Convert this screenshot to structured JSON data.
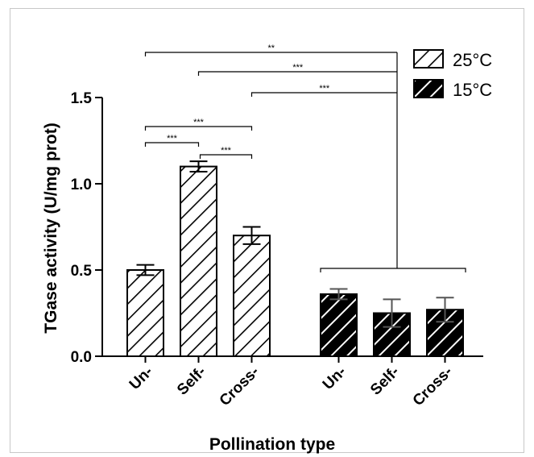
{
  "chart_data": {
    "type": "bar",
    "xlabel": "Pollination type",
    "ylabel": "TGase activity (U/mg prot)",
    "ylim": [
      0,
      1.5
    ],
    "yticks": [
      "0.0",
      "0.5",
      "1.0",
      "1.5"
    ],
    "grid": false,
    "legend_placement": "top-right",
    "series": [
      {
        "name": "25°C",
        "pattern": "hatch-white",
        "categories": [
          "Un-",
          "Self-",
          "Cross-"
        ],
        "values": [
          0.5,
          1.1,
          0.7
        ],
        "errors": [
          0.03,
          0.03,
          0.05
        ]
      },
      {
        "name": "15°C",
        "pattern": "hatch-black",
        "categories": [
          "Un-",
          "Self-",
          "Cross-"
        ],
        "values": [
          0.36,
          0.25,
          0.27
        ],
        "errors": [
          0.03,
          0.08,
          0.07
        ]
      }
    ],
    "significance": [
      {
        "label": "***",
        "between": [
          "25°C Un-",
          "25°C Self-"
        ]
      },
      {
        "label": "***",
        "between": [
          "25°C Self-",
          "25°C Cross-"
        ]
      },
      {
        "label": "***",
        "between": [
          "25°C Un-",
          "25°C Cross-"
        ]
      },
      {
        "label": "**",
        "between": [
          "25°C Un-",
          "15°C group"
        ]
      },
      {
        "label": "***",
        "between": [
          "25°C Self-",
          "15°C group"
        ]
      },
      {
        "label": "***",
        "between": [
          "25°C Cross-",
          "15°C group"
        ]
      }
    ]
  }
}
